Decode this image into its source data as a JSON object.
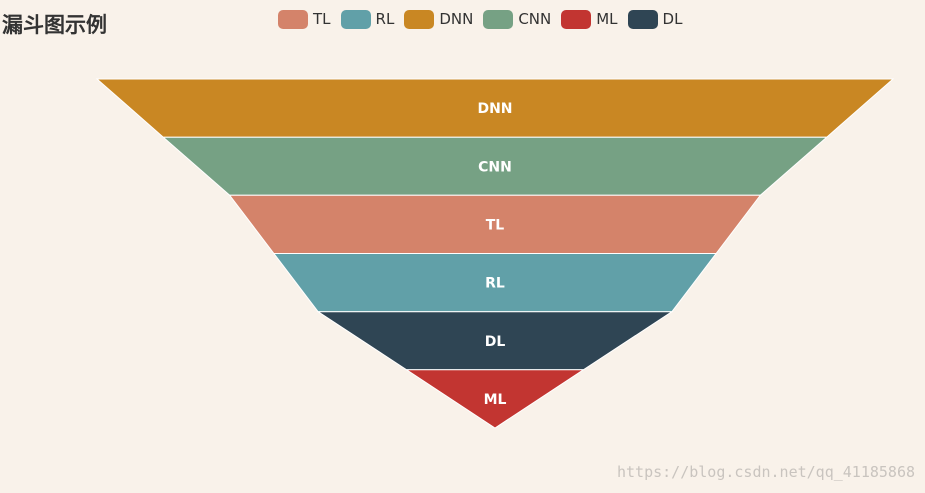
{
  "chart_data": {
    "type": "funnel",
    "title": "漏斗图示例",
    "sort": "descending",
    "legend_position": "top-center",
    "categories": [
      "TL",
      "RL",
      "DNN",
      "CNN",
      "ML",
      "DL"
    ],
    "values": [
      60,
      50,
      90,
      75,
      20,
      40
    ],
    "colors": [
      "#d4836a",
      "#61a0a8",
      "#c98723",
      "#76a184",
      "#c23531",
      "#2f4554"
    ],
    "label_color": "#ffffff",
    "separator_color": "#ffffff"
  },
  "watermark": "https://blog.csdn.net/qq_41185868"
}
